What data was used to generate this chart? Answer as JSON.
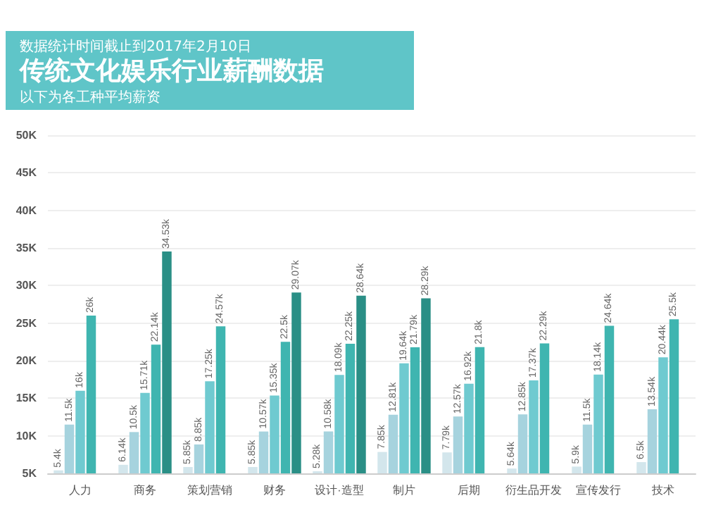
{
  "chart_data": {
    "type": "bar",
    "title": "传统文化娱乐行业薪酬数据",
    "subtitle": "以下为各工种平均薪资",
    "annotations": [
      "数据统计时间截止到2017年2月10日"
    ],
    "categories": [
      "人力",
      "商务",
      "策划营销",
      "财务",
      "设计·造型",
      "制片",
      "后期",
      "衍生品开发",
      "宣传发行",
      "技术"
    ],
    "series": [
      {
        "color": "#d3e6ec",
        "values": [
          5.4,
          6.14,
          5.85,
          5.85,
          5.28,
          7.85,
          7.79,
          5.64,
          5.9,
          6.5
        ],
        "value_labels": [
          "5.4k",
          "6.14k",
          "5.85k",
          "5.85k",
          "5.28k",
          "7.85k",
          "7.79k",
          "5.64k",
          "5.9k",
          "6.5k"
        ]
      },
      {
        "color": "#a6d3de",
        "values": [
          11.5,
          10.5,
          8.85,
          10.57,
          10.58,
          12.81,
          12.57,
          12.85,
          11.5,
          13.54
        ],
        "value_labels": [
          "11.5k",
          "10.5k",
          "8.85k",
          "10.57k",
          "10.58k",
          "12.81k",
          "12.57k",
          "12.85k",
          "11.5k",
          "13.54k"
        ]
      },
      {
        "color": "#6fcad0",
        "values": [
          16,
          15.71,
          17.25,
          15.35,
          18.09,
          19.64,
          16.92,
          17.37,
          18.14,
          20.44
        ],
        "value_labels": [
          "16k",
          "15.71k",
          "17.25k",
          "15.35k",
          "18.09k",
          "19.64k",
          "16.92k",
          "17.37k",
          "18.14k",
          "20.44k"
        ]
      },
      {
        "color": "#3fb5b0",
        "values": [
          26,
          22.14,
          24.57,
          22.5,
          22.25,
          21.79,
          21.8,
          22.29,
          24.64,
          25.5
        ],
        "value_labels": [
          "26k",
          "22.14k",
          "24.57k",
          "22.5k",
          "22.25k",
          "21.79k",
          "21.8k",
          "22.29k",
          "24.64k",
          "25.5k"
        ]
      },
      {
        "color": "#2a8f86",
        "values": [
          null,
          34.53,
          null,
          29.07,
          28.64,
          28.29,
          null,
          null,
          null,
          null
        ],
        "value_labels": [
          null,
          "34.53k",
          null,
          "29.07k",
          "28.64k",
          "28.29k",
          null,
          null,
          null,
          null
        ]
      }
    ],
    "ylim": [
      5,
      50
    ],
    "yticks": [
      {
        "value": 5,
        "label": "5K"
      },
      {
        "value": 10,
        "label": "10K"
      },
      {
        "value": 15,
        "label": "15K"
      },
      {
        "value": 20,
        "label": "20K"
      },
      {
        "value": 25,
        "label": "25K"
      },
      {
        "value": 30,
        "label": "30K"
      },
      {
        "value": 35,
        "label": "35K"
      },
      {
        "value": 40,
        "label": "40K"
      },
      {
        "value": 45,
        "label": "45K"
      },
      {
        "value": 50,
        "label": "50K"
      }
    ],
    "grid": "y"
  }
}
